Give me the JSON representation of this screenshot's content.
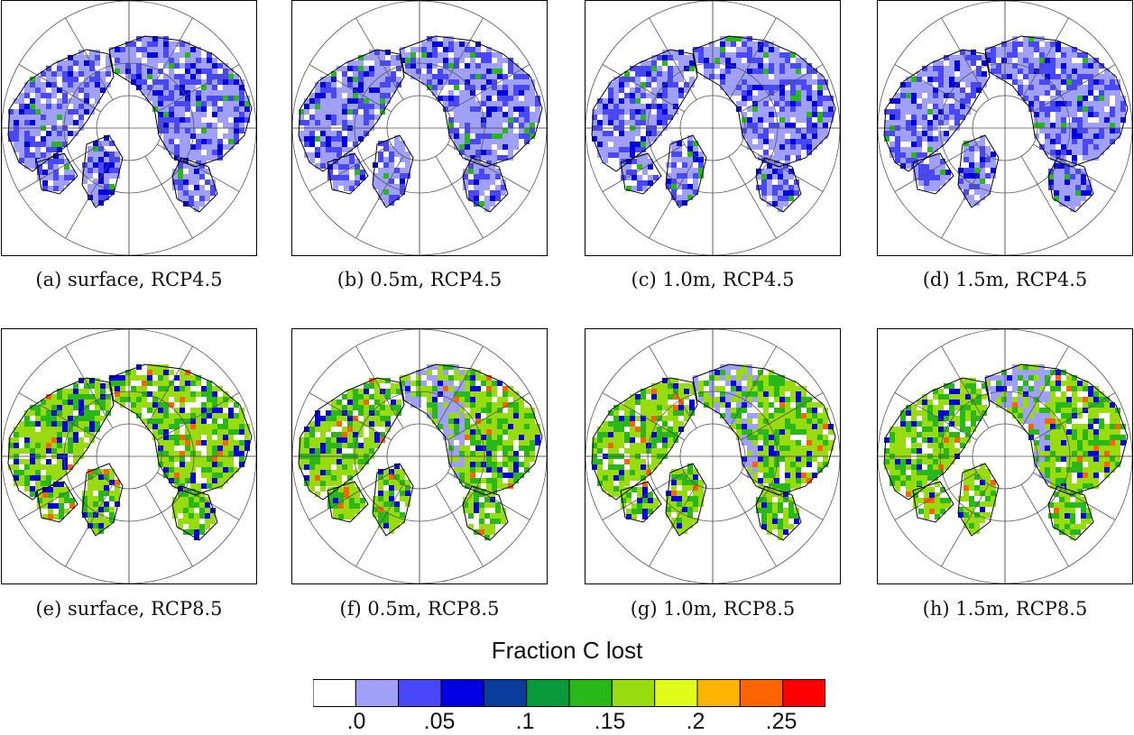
{
  "figure": {
    "panels": [
      {
        "id": "a",
        "caption": "(a) surface, RCP4.5",
        "scenario": "RCP4.5",
        "depth": "surface"
      },
      {
        "id": "b",
        "caption": "(b) 0.5m, RCP4.5",
        "scenario": "RCP4.5",
        "depth": "0.5m"
      },
      {
        "id": "c",
        "caption": "(c) 1.0m, RCP4.5",
        "scenario": "RCP4.5",
        "depth": "1.0m"
      },
      {
        "id": "d",
        "caption": "(d) 1.5m, RCP4.5",
        "scenario": "RCP4.5",
        "depth": "1.5m"
      },
      {
        "id": "e",
        "caption": "(e) surface, RCP8.5",
        "scenario": "RCP8.5",
        "depth": "surface"
      },
      {
        "id": "f",
        "caption": "(f) 0.5m, RCP8.5",
        "scenario": "RCP8.5",
        "depth": "0.5m"
      },
      {
        "id": "g",
        "caption": "(g) 1.0m, RCP8.5",
        "scenario": "RCP8.5",
        "depth": "1.0m"
      },
      {
        "id": "h",
        "caption": "(h) 1.5m, RCP8.5",
        "scenario": "RCP8.5",
        "depth": "1.5m"
      }
    ],
    "colorbar": {
      "title": "Fraction C lost",
      "colors": [
        "#ffffff",
        "#a0a0f8",
        "#4848f8",
        "#0000e0",
        "#0a3c9c",
        "#0a9a3c",
        "#28b818",
        "#98dc10",
        "#e0fc18",
        "#fcb400",
        "#fc6400",
        "#fc0000"
      ],
      "tick_labels": [
        ".0",
        ".05",
        ".1",
        ".15",
        ".2",
        ".25"
      ]
    },
    "blob_palettes": {
      "RCP4.5": {
        "base": "#a0a0f8",
        "mid": "#4848f8",
        "high": "#0000e0",
        "accent": "#28b818"
      },
      "RCP8.5": {
        "base": "#98dc10",
        "mid": "#28b818",
        "high": "#0000e0",
        "accent": "#fc6400"
      }
    }
  }
}
